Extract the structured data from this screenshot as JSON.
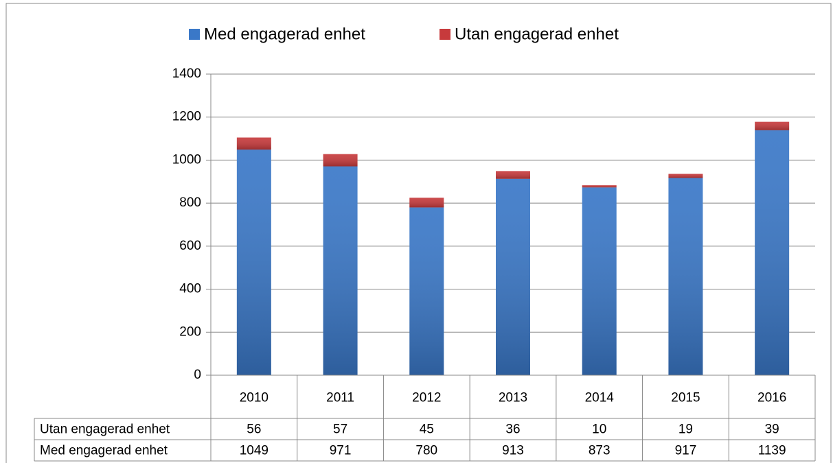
{
  "chart_data": {
    "type": "stacked_bar",
    "categories": [
      "2010",
      "2011",
      "2012",
      "2013",
      "2014",
      "2015",
      "2016"
    ],
    "series": [
      {
        "name": "Med engagerad enhet",
        "color": "#3a78c8",
        "values": [
          1049,
          971,
          780,
          913,
          873,
          917,
          1139
        ]
      },
      {
        "name": "Utan engagerad enhet",
        "color": "#c73a3c",
        "values": [
          56,
          57,
          45,
          36,
          10,
          19,
          39
        ]
      }
    ],
    "ylim": [
      0,
      1400
    ],
    "yticks": [
      0,
      200,
      400,
      600,
      800,
      1000,
      1200,
      1400
    ],
    "grid": true,
    "legend": "top",
    "data_table_order": [
      1,
      0
    ]
  }
}
